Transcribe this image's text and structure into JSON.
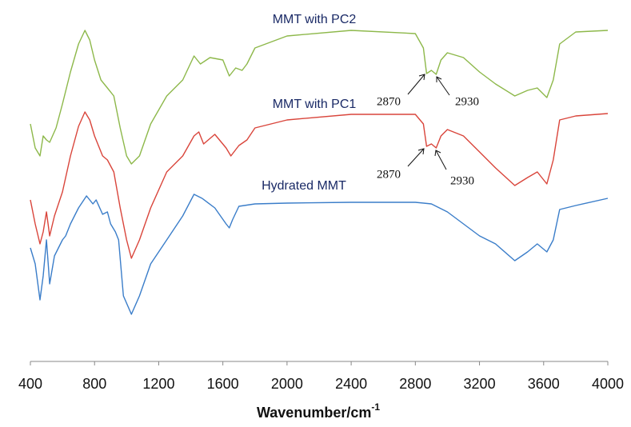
{
  "chart_data": {
    "type": "line",
    "x_label": {
      "text": "Wavenumber/cm",
      "sup": "-1"
    },
    "xlim": [
      400,
      4000
    ],
    "xticks": [
      400,
      800,
      1200,
      1600,
      2000,
      2400,
      2800,
      3200,
      3600,
      4000
    ],
    "ylim": [
      0,
      440
    ],
    "series": [
      {
        "name": "MMT with PC2",
        "color": "#8db84a",
        "x": [
          400,
          430,
          460,
          480,
          500,
          520,
          560,
          600,
          650,
          700,
          740,
          770,
          800,
          840,
          880,
          920,
          960,
          1000,
          1030,
          1080,
          1150,
          1250,
          1350,
          1420,
          1460,
          1520,
          1600,
          1640,
          1680,
          1720,
          1750,
          1800,
          2000,
          2400,
          2800,
          2850,
          2870,
          2900,
          2930,
          2960,
          3000,
          3100,
          3200,
          3300,
          3420,
          3500,
          3560,
          3620,
          3660,
          3700,
          3800,
          4000
        ],
        "values": [
          297,
          267,
          257,
          282,
          277,
          274,
          292,
          322,
          362,
          397,
          414,
          402,
          377,
          352,
          342,
          332,
          292,
          257,
          247,
          257,
          297,
          332,
          352,
          382,
          372,
          380,
          377,
          357,
          367,
          364,
          372,
          392,
          407,
          414,
          410,
          392,
          360,
          364,
          359,
          377,
          386,
          380,
          362,
          347,
          332,
          339,
          342,
          330,
          352,
          397,
          412,
          414
        ]
      },
      {
        "name": "MMT with PC1",
        "color": "#d9453b",
        "x": [
          400,
          430,
          460,
          480,
          500,
          520,
          550,
          600,
          650,
          700,
          740,
          770,
          800,
          850,
          880,
          920,
          960,
          1000,
          1030,
          1080,
          1150,
          1250,
          1350,
          1420,
          1450,
          1480,
          1550,
          1620,
          1650,
          1700,
          1750,
          1800,
          2000,
          2400,
          2800,
          2850,
          2870,
          2900,
          2930,
          2960,
          3000,
          3100,
          3200,
          3300,
          3420,
          3500,
          3560,
          3620,
          3660,
          3700,
          3800,
          4000
        ],
        "values": [
          202,
          172,
          147,
          162,
          187,
          157,
          182,
          212,
          257,
          294,
          312,
          302,
          282,
          257,
          252,
          237,
          192,
          152,
          129,
          152,
          192,
          237,
          257,
          282,
          287,
          272,
          284,
          267,
          257,
          270,
          277,
          292,
          302,
          309,
          309,
          297,
          269,
          272,
          267,
          282,
          290,
          282,
          262,
          242,
          220,
          230,
          237,
          222,
          252,
          302,
          307,
          310
        ]
      },
      {
        "name": "Hydrated MMT",
        "color": "#3a7dc9",
        "x": [
          400,
          430,
          460,
          480,
          500,
          520,
          550,
          600,
          620,
          650,
          700,
          750,
          790,
          810,
          850,
          880,
          900,
          930,
          950,
          980,
          1030,
          1080,
          1150,
          1250,
          1350,
          1420,
          1470,
          1550,
          1620,
          1640,
          1660,
          1700,
          1800,
          2000,
          2400,
          2800,
          2900,
          3000,
          3100,
          3200,
          3300,
          3420,
          3500,
          3560,
          3620,
          3660,
          3700,
          3800,
          4000
        ],
        "values": [
          142,
          122,
          77,
          107,
          152,
          97,
          132,
          152,
          157,
          172,
          192,
          207,
          197,
          202,
          184,
          187,
          172,
          162,
          152,
          82,
          59,
          82,
          122,
          152,
          182,
          209,
          204,
          192,
          172,
          167,
          177,
          194,
          197,
          198,
          199,
          199,
          197,
          187,
          172,
          157,
          147,
          126,
          137,
          147,
          137,
          152,
          190,
          195,
          204
        ]
      }
    ],
    "annotations": [
      "2870",
      "2930",
      "2870",
      "2930"
    ]
  }
}
